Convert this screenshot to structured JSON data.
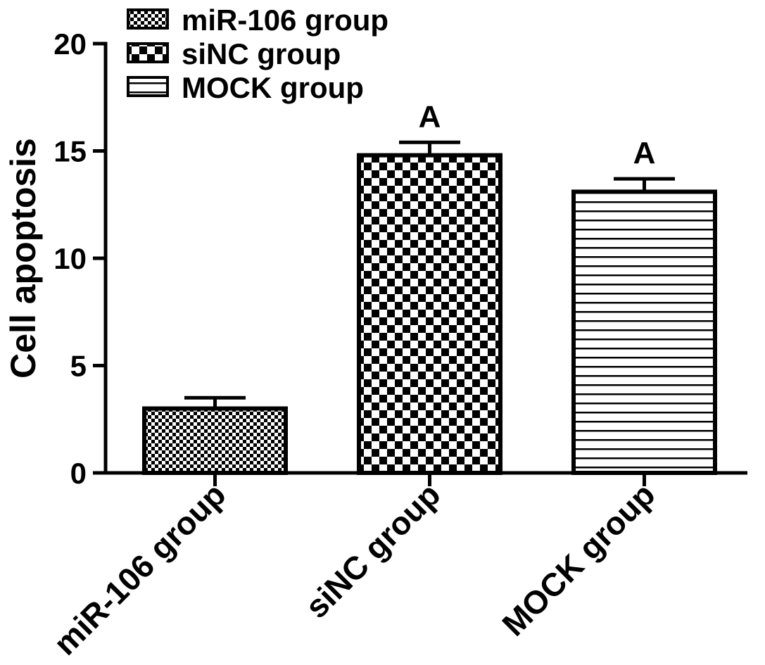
{
  "chart_data": {
    "type": "bar",
    "categories": [
      "miR-106 group",
      "siNC group",
      "MOCK group"
    ],
    "values": [
      3.0,
      14.8,
      13.1
    ],
    "errors": [
      0.5,
      0.6,
      0.6
    ],
    "significance_labels": [
      null,
      "A",
      "A"
    ],
    "ylabel": "Cell apoptosis",
    "ylim": [
      0,
      20
    ],
    "yticks": [
      0,
      5,
      10,
      15,
      20
    ],
    "grid": false,
    "legend": {
      "placement": "top-left",
      "entries": [
        "miR-106 group",
        "siNC group",
        "MOCK group"
      ]
    },
    "fill_patterns": [
      "fine-checker",
      "checker",
      "horizontal-lines"
    ],
    "colors": {
      "bar_stroke": "#000000",
      "pattern": "#000000",
      "background": "#ffffff"
    }
  }
}
